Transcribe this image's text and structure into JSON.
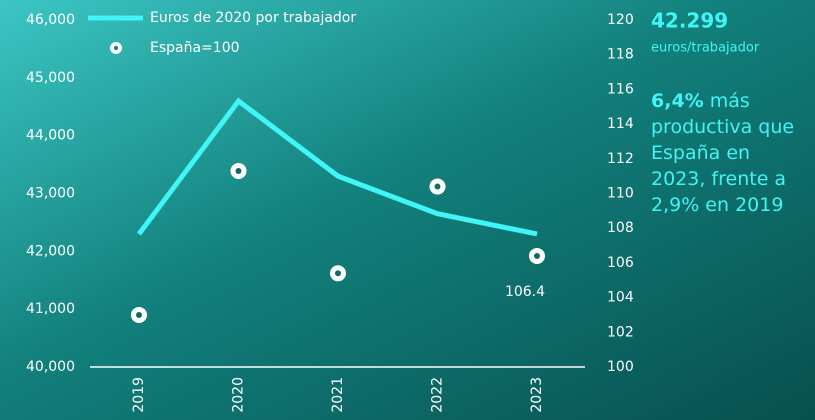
{
  "chart_data": {
    "type": "line",
    "categories": [
      "2019",
      "2020",
      "2021",
      "2022",
      "2023"
    ],
    "series": [
      {
        "name": "Euros de 2020 por trabajador",
        "color": "#3ff5f5",
        "marker": "line",
        "values": [
          42300,
          44600,
          43300,
          42650,
          42300
        ]
      },
      {
        "name": "España=100",
        "color": "#ffffff",
        "marker": "point",
        "axis": "y2",
        "values": [
          103.0,
          111.3,
          105.4,
          110.4,
          106.4
        ]
      }
    ],
    "ylim": [
      40000,
      46000
    ],
    "yticks": [
      {
        "value": 40000,
        "label": "40,000"
      },
      {
        "value": 41000,
        "label": "41,000"
      },
      {
        "value": 42000,
        "label": "42,000"
      },
      {
        "value": 43000,
        "label": "43,000"
      },
      {
        "value": 44000,
        "label": "44,000"
      },
      {
        "value": 45000,
        "label": "45,000"
      },
      {
        "value": 46000,
        "label": "46,000"
      }
    ],
    "y2lim": [
      100,
      120
    ],
    "y2ticks": [
      100,
      102,
      104,
      106,
      108,
      110,
      112,
      114,
      116,
      118,
      120
    ],
    "labeled_point": 4,
    "headline_value": "42.299",
    "headline_unit": "euros/trabajador",
    "note_bold": "6,4%",
    "note_lines": [
      "más",
      "productiva que",
      "España en",
      "2023, frente a",
      "2,9% en 2019"
    ]
  }
}
